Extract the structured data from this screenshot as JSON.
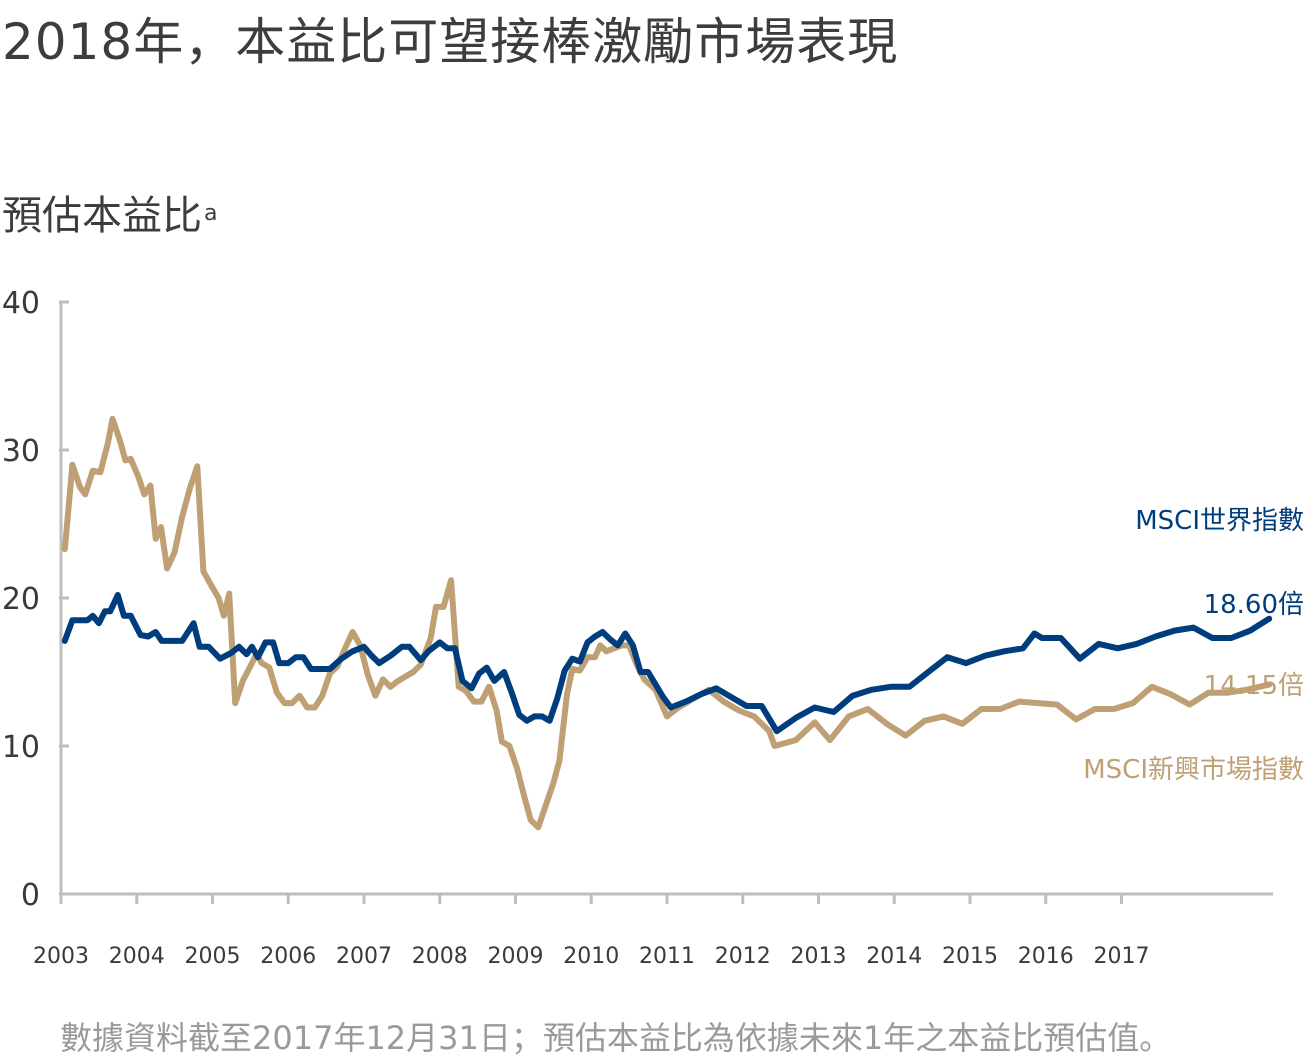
{
  "title": "2018年，本益比可望接棒激勵市場表現",
  "ylabel": "預估本益比",
  "ylabel_note": "a",
  "footnote": "數據資料截至2017年12月31日；預估本益比為依據未來1年之本益比預估值。",
  "colors": {
    "world": "#003d7d",
    "em": "#bf9f74",
    "axis": "#bdbdbd",
    "text": "#3a3a3a"
  },
  "chart_data": {
    "type": "line",
    "ylim": [
      0,
      40
    ],
    "yticks": [
      "0",
      "10",
      "20",
      "30",
      "40"
    ],
    "xlim": [
      2003,
      2019
    ],
    "xticks": [
      "2003",
      "2004",
      "2005",
      "2006",
      "2007",
      "2008",
      "2009",
      "2010",
      "2011",
      "2012",
      "2013",
      "2014",
      "2015",
      "2016",
      "2017"
    ],
    "series": [
      {
        "name": "MSCI世界指數",
        "end_label": "18.60倍",
        "color": "#003d7d",
        "points": [
          [
            2003.05,
            17.1
          ],
          [
            2003.15,
            18.5
          ],
          [
            2003.25,
            18.5
          ],
          [
            2003.35,
            18.5
          ],
          [
            2003.42,
            18.8
          ],
          [
            2003.5,
            18.3
          ],
          [
            2003.58,
            19.1
          ],
          [
            2003.65,
            19.1
          ],
          [
            2003.75,
            20.2
          ],
          [
            2003.83,
            18.8
          ],
          [
            2003.92,
            18.8
          ],
          [
            2004.05,
            17.5
          ],
          [
            2004.15,
            17.4
          ],
          [
            2004.25,
            17.7
          ],
          [
            2004.33,
            17.1
          ],
          [
            2004.45,
            17.1
          ],
          [
            2004.6,
            17.1
          ],
          [
            2004.75,
            18.3
          ],
          [
            2004.83,
            16.7
          ],
          [
            2004.95,
            16.7
          ],
          [
            2005.1,
            15.9
          ],
          [
            2005.25,
            16.3
          ],
          [
            2005.35,
            16.7
          ],
          [
            2005.45,
            16.2
          ],
          [
            2005.52,
            16.7
          ],
          [
            2005.6,
            16.0
          ],
          [
            2005.7,
            17.0
          ],
          [
            2005.8,
            17.0
          ],
          [
            2005.88,
            15.6
          ],
          [
            2006.0,
            15.6
          ],
          [
            2006.1,
            16.0
          ],
          [
            2006.2,
            16.0
          ],
          [
            2006.3,
            15.2
          ],
          [
            2006.45,
            15.2
          ],
          [
            2006.55,
            15.2
          ],
          [
            2006.7,
            15.9
          ],
          [
            2006.85,
            16.4
          ],
          [
            2007.0,
            16.7
          ],
          [
            2007.1,
            16.1
          ],
          [
            2007.2,
            15.6
          ],
          [
            2007.35,
            16.1
          ],
          [
            2007.5,
            16.7
          ],
          [
            2007.6,
            16.7
          ],
          [
            2007.75,
            15.8
          ],
          [
            2007.85,
            16.4
          ],
          [
            2008.0,
            17.0
          ],
          [
            2008.1,
            16.6
          ],
          [
            2008.2,
            16.6
          ],
          [
            2008.3,
            14.4
          ],
          [
            2008.42,
            13.9
          ],
          [
            2008.52,
            14.9
          ],
          [
            2008.62,
            15.3
          ],
          [
            2008.72,
            14.4
          ],
          [
            2008.85,
            15.0
          ],
          [
            2008.95,
            13.6
          ],
          [
            2009.05,
            12.1
          ],
          [
            2009.15,
            11.7
          ],
          [
            2009.25,
            12.0
          ],
          [
            2009.35,
            12.0
          ],
          [
            2009.45,
            11.7
          ],
          [
            2009.55,
            13.2
          ],
          [
            2009.65,
            15.1
          ],
          [
            2009.75,
            15.9
          ],
          [
            2009.85,
            15.7
          ],
          [
            2009.95,
            17.0
          ],
          [
            2010.05,
            17.4
          ],
          [
            2010.15,
            17.7
          ],
          [
            2010.25,
            17.2
          ],
          [
            2010.35,
            16.8
          ],
          [
            2010.45,
            17.6
          ],
          [
            2010.55,
            16.8
          ],
          [
            2010.65,
            15.0
          ],
          [
            2010.75,
            15.0
          ],
          [
            2010.95,
            13.3
          ],
          [
            2011.05,
            12.6
          ],
          [
            2011.25,
            13.0
          ],
          [
            2011.45,
            13.5
          ],
          [
            2011.65,
            13.9
          ],
          [
            2011.85,
            13.3
          ],
          [
            2012.05,
            12.7
          ],
          [
            2012.25,
            12.7
          ],
          [
            2012.45,
            11.0
          ],
          [
            2012.7,
            11.9
          ],
          [
            2012.95,
            12.6
          ],
          [
            2013.2,
            12.3
          ],
          [
            2013.45,
            13.4
          ],
          [
            2013.7,
            13.8
          ],
          [
            2013.95,
            14.0
          ],
          [
            2014.2,
            14.0
          ],
          [
            2014.45,
            15.0
          ],
          [
            2014.7,
            16.0
          ],
          [
            2014.95,
            15.6
          ],
          [
            2015.2,
            16.1
          ],
          [
            2015.45,
            16.4
          ],
          [
            2015.7,
            16.6
          ],
          [
            2015.85,
            17.6
          ],
          [
            2015.95,
            17.3
          ],
          [
            2016.2,
            17.3
          ],
          [
            2016.45,
            15.9
          ],
          [
            2016.7,
            16.9
          ],
          [
            2016.95,
            16.6
          ],
          [
            2017.2,
            16.9
          ],
          [
            2017.45,
            17.4
          ],
          [
            2017.7,
            17.8
          ],
          [
            2017.95,
            18.0
          ],
          [
            2018.2,
            17.3
          ],
          [
            2018.45,
            17.3
          ],
          [
            2018.7,
            17.8
          ],
          [
            2018.95,
            18.6
          ]
        ]
      },
      {
        "name": "MSCI新興市場指數",
        "end_label": "14.15倍",
        "color": "#bf9f74",
        "points": [
          [
            2003.05,
            23.3
          ],
          [
            2003.15,
            29.0
          ],
          [
            2003.25,
            27.5
          ],
          [
            2003.32,
            27.0
          ],
          [
            2003.42,
            28.6
          ],
          [
            2003.52,
            28.5
          ],
          [
            2003.62,
            30.5
          ],
          [
            2003.68,
            32.1
          ],
          [
            2003.78,
            30.6
          ],
          [
            2003.85,
            29.3
          ],
          [
            2003.92,
            29.4
          ],
          [
            2004.02,
            28.2
          ],
          [
            2004.1,
            27.0
          ],
          [
            2004.18,
            27.6
          ],
          [
            2004.25,
            24.0
          ],
          [
            2004.32,
            24.8
          ],
          [
            2004.4,
            22.0
          ],
          [
            2004.5,
            23.1
          ],
          [
            2004.6,
            25.5
          ],
          [
            2004.7,
            27.4
          ],
          [
            2004.8,
            28.9
          ],
          [
            2004.88,
            21.8
          ],
          [
            2005.0,
            20.7
          ],
          [
            2005.08,
            20.0
          ],
          [
            2005.15,
            18.8
          ],
          [
            2005.22,
            20.3
          ],
          [
            2005.3,
            12.9
          ],
          [
            2005.4,
            14.4
          ],
          [
            2005.5,
            15.4
          ],
          [
            2005.58,
            16.2
          ],
          [
            2005.65,
            15.6
          ],
          [
            2005.75,
            15.3
          ],
          [
            2005.85,
            13.6
          ],
          [
            2005.95,
            12.9
          ],
          [
            2006.05,
            12.9
          ],
          [
            2006.15,
            13.4
          ],
          [
            2006.25,
            12.6
          ],
          [
            2006.35,
            12.6
          ],
          [
            2006.45,
            13.4
          ],
          [
            2006.55,
            14.9
          ],
          [
            2006.65,
            15.4
          ],
          [
            2006.75,
            16.6
          ],
          [
            2006.85,
            17.7
          ],
          [
            2006.95,
            16.8
          ],
          [
            2007.05,
            14.8
          ],
          [
            2007.15,
            13.4
          ],
          [
            2007.25,
            14.5
          ],
          [
            2007.35,
            14.0
          ],
          [
            2007.45,
            14.4
          ],
          [
            2007.55,
            14.7
          ],
          [
            2007.65,
            15.0
          ],
          [
            2007.75,
            15.5
          ],
          [
            2007.88,
            17.3
          ],
          [
            2007.95,
            19.4
          ],
          [
            2008.05,
            19.4
          ],
          [
            2008.15,
            21.2
          ],
          [
            2008.25,
            14.0
          ],
          [
            2008.35,
            13.7
          ],
          [
            2008.45,
            13.0
          ],
          [
            2008.55,
            13.0
          ],
          [
            2008.65,
            14.0
          ],
          [
            2008.75,
            12.4
          ],
          [
            2008.82,
            10.3
          ],
          [
            2008.92,
            10.0
          ],
          [
            2009.02,
            8.5
          ],
          [
            2009.12,
            6.5
          ],
          [
            2009.2,
            5.0
          ],
          [
            2009.3,
            4.5
          ],
          [
            2009.4,
            6.0
          ],
          [
            2009.5,
            7.5
          ],
          [
            2009.58,
            9.0
          ],
          [
            2009.68,
            13.5
          ],
          [
            2009.75,
            15.2
          ],
          [
            2009.85,
            15.1
          ],
          [
            2009.95,
            16.0
          ],
          [
            2010.05,
            16.0
          ],
          [
            2010.12,
            16.8
          ],
          [
            2010.2,
            16.4
          ],
          [
            2010.3,
            16.6
          ],
          [
            2010.4,
            16.8
          ],
          [
            2010.5,
            16.8
          ],
          [
            2010.6,
            15.5
          ],
          [
            2010.7,
            14.5
          ],
          [
            2010.85,
            13.8
          ],
          [
            2011.0,
            12.0
          ],
          [
            2011.15,
            12.6
          ],
          [
            2011.35,
            13.2
          ],
          [
            2011.55,
            13.8
          ],
          [
            2011.75,
            13.0
          ],
          [
            2011.95,
            12.4
          ],
          [
            2012.15,
            12.0
          ],
          [
            2012.35,
            11.0
          ],
          [
            2012.42,
            10.0
          ],
          [
            2012.7,
            10.4
          ],
          [
            2012.95,
            11.6
          ],
          [
            2013.15,
            10.4
          ],
          [
            2013.4,
            12.0
          ],
          [
            2013.65,
            12.5
          ],
          [
            2013.9,
            11.5
          ],
          [
            2014.15,
            10.7
          ],
          [
            2014.4,
            11.7
          ],
          [
            2014.65,
            12.0
          ],
          [
            2014.9,
            11.5
          ],
          [
            2015.15,
            12.5
          ],
          [
            2015.4,
            12.5
          ],
          [
            2015.65,
            13.0
          ],
          [
            2015.9,
            12.9
          ],
          [
            2016.15,
            12.8
          ],
          [
            2016.4,
            11.8
          ],
          [
            2016.65,
            12.5
          ],
          [
            2016.9,
            12.5
          ],
          [
            2017.15,
            12.9
          ],
          [
            2017.4,
            14.0
          ],
          [
            2017.65,
            13.5
          ],
          [
            2017.9,
            12.8
          ],
          [
            2018.15,
            13.6
          ],
          [
            2018.4,
            13.6
          ],
          [
            2018.65,
            13.8
          ],
          [
            2018.95,
            14.15
          ]
        ]
      }
    ]
  }
}
